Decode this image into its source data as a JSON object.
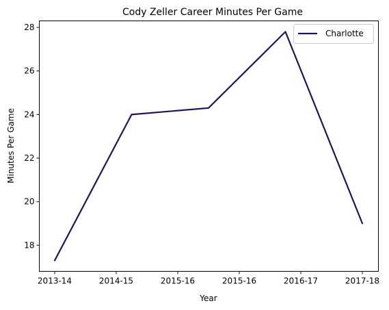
{
  "chart_data": {
    "type": "line",
    "title": "Cody Zeller Career Minutes Per Game",
    "xlabel": "Year",
    "ylabel": "Minutes Per Game",
    "x_ticks": [
      "2013-14",
      "2014-15",
      "2015-16",
      "2015-16",
      "2016-17",
      "2017-18"
    ],
    "y_ticks": [
      18,
      20,
      22,
      24,
      26,
      28
    ],
    "ylim": [
      16.8,
      28.3
    ],
    "grid": false,
    "legend_position": "top-right",
    "series": [
      {
        "name": "Charlotte",
        "color": "#1c1559",
        "x": [
          0,
          1.25,
          2.5,
          3.75,
          5.0
        ],
        "y": [
          17.3,
          24.0,
          24.3,
          27.8,
          19.0
        ]
      }
    ]
  }
}
